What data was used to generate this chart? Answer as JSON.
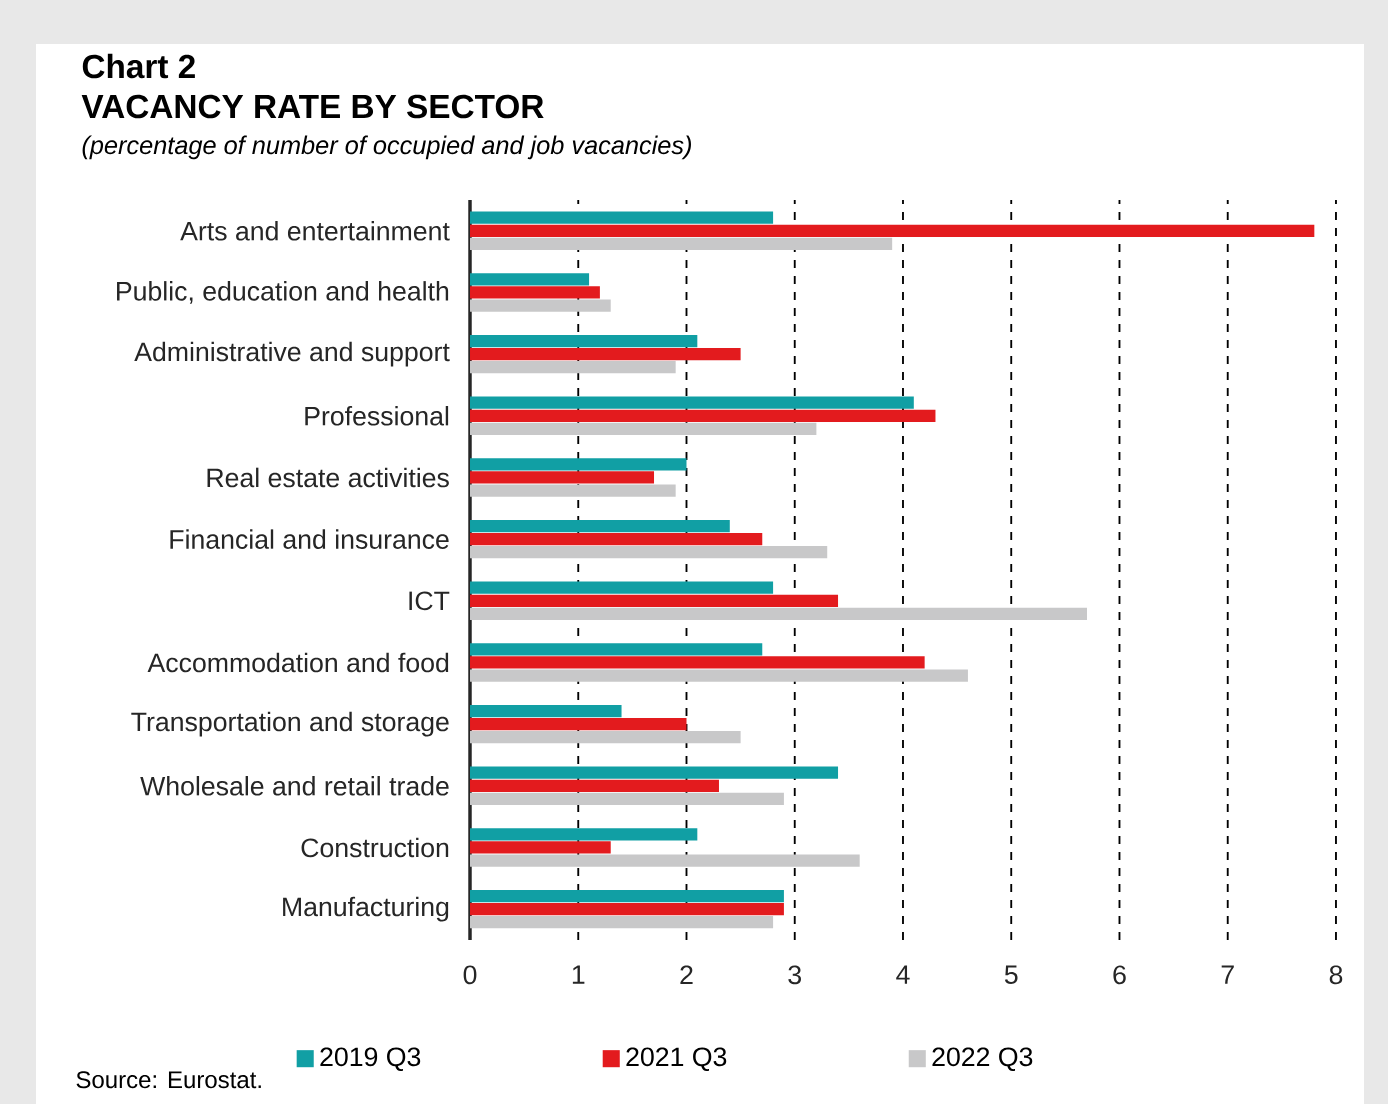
{
  "chart_data": {
    "type": "bar",
    "orientation": "horizontal",
    "title": "Chart 2",
    "subtitle": "VACANCY RATE BY SECTOR",
    "annotations": [
      "(percentage of number of occupied and job vacancies)",
      "Source: Eurostat."
    ],
    "categories": [
      "Arts and entertainment",
      "Public, education and health",
      "Administrative and support",
      "Professional",
      "Real estate activities",
      "Financial and insurance",
      "ICT",
      "Accommodation and food",
      "Transportation and storage",
      "Wholesale and retail trade",
      "Construction",
      "Manufacturing"
    ],
    "series": [
      {
        "name": "2019 Q3",
        "color": "#119fa4",
        "values": [
          2.8,
          1.1,
          2.1,
          4.1,
          2.0,
          2.4,
          2.8,
          2.7,
          1.4,
          3.4,
          2.1,
          2.9
        ]
      },
      {
        "name": "2021 Q3",
        "color": "#e31b1e",
        "values": [
          7.8,
          1.2,
          2.5,
          4.3,
          1.7,
          2.7,
          3.4,
          4.2,
          2.0,
          2.3,
          1.3,
          2.9
        ]
      },
      {
        "name": "2022 Q3",
        "color": "#c8c8c9",
        "values": [
          3.9,
          1.3,
          1.9,
          3.2,
          1.9,
          3.3,
          5.7,
          4.6,
          2.5,
          2.9,
          3.6,
          2.8
        ]
      }
    ],
    "xlim": [
      0,
      8
    ],
    "xticks": [
      0,
      1,
      2,
      3,
      4,
      5,
      6,
      7,
      8
    ],
    "grid": "x",
    "legend": "bottom"
  }
}
